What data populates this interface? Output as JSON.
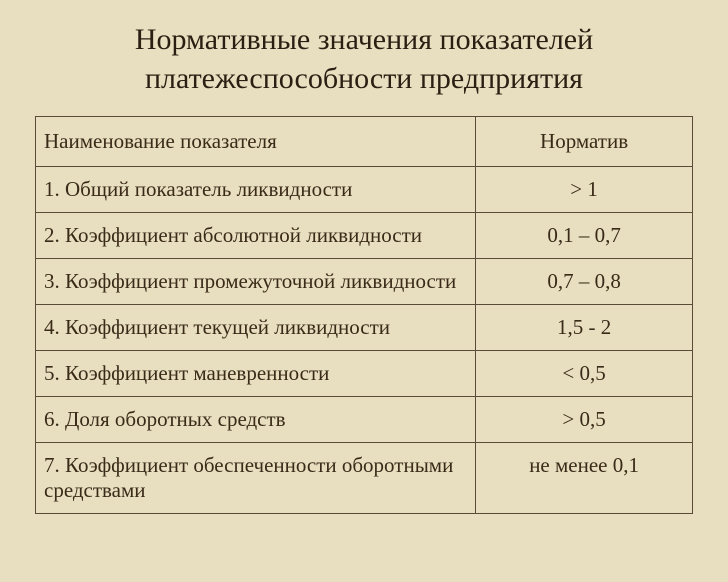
{
  "title": "Нормативные значения показателей платежеспособности предприятия",
  "table": {
    "headers": {
      "name": "Наименование показателя",
      "norm": "Норматив"
    },
    "rows": [
      {
        "name": "1. Общий показатель ликвидности",
        "norm": "> 1"
      },
      {
        "name": "2. Коэффициент абсолютной ликвидности",
        "norm": "0,1 – 0,7"
      },
      {
        "name": "3. Коэффициент промежуточной ликвидности",
        "norm": "0,7 – 0,8"
      },
      {
        "name": "4. Коэффициент текущей ликвидности",
        "norm": "1,5 - 2"
      },
      {
        "name": "5. Коэффициент маневренности",
        "norm": "< 0,5"
      },
      {
        "name": "6. Доля оборотных средств",
        "norm": "> 0,5"
      },
      {
        "name": "7. Коэффициент обеспеченности оборотными средствами",
        "norm": "не менее 0,1"
      }
    ]
  }
}
